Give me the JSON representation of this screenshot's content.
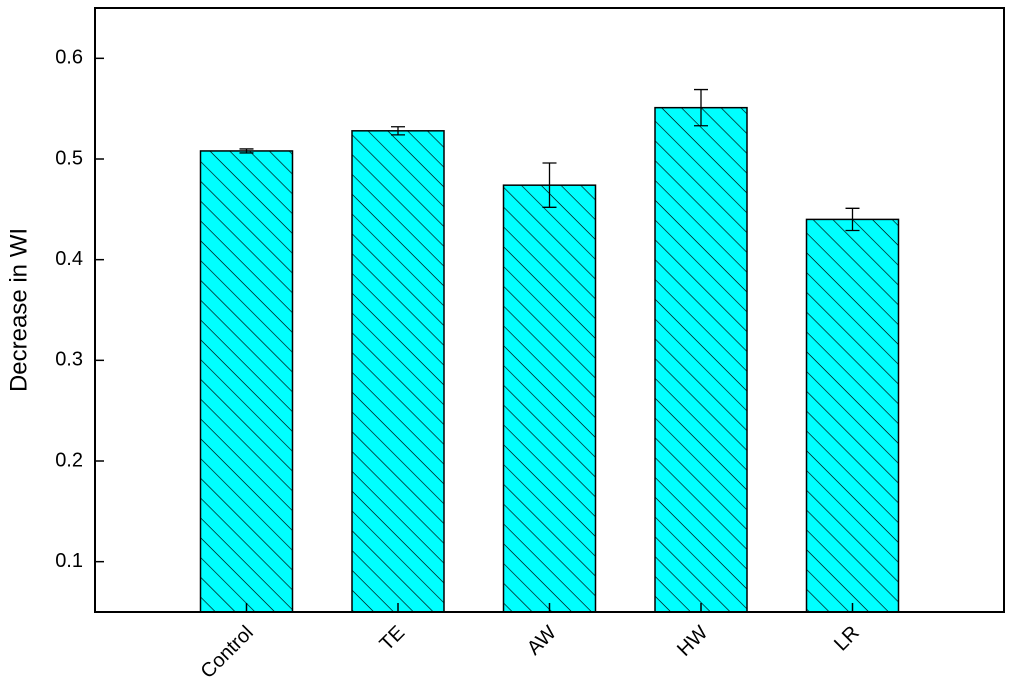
{
  "chart_data": {
    "type": "bar",
    "y_label": "Decrease in WI",
    "categories": [
      "Control",
      "TE",
      "AW",
      "HW",
      "LR"
    ],
    "values": [
      0.508,
      0.528,
      0.474,
      0.551,
      0.44
    ],
    "errors": [
      0.002,
      0.004,
      0.022,
      0.018,
      0.011
    ],
    "color": "#00ffff",
    "hatch": true,
    "ylim": [
      0.05,
      0.65
    ],
    "yticks": [
      0.1,
      0.2,
      0.3,
      0.4,
      0.5,
      0.6
    ],
    "grid": false
  }
}
